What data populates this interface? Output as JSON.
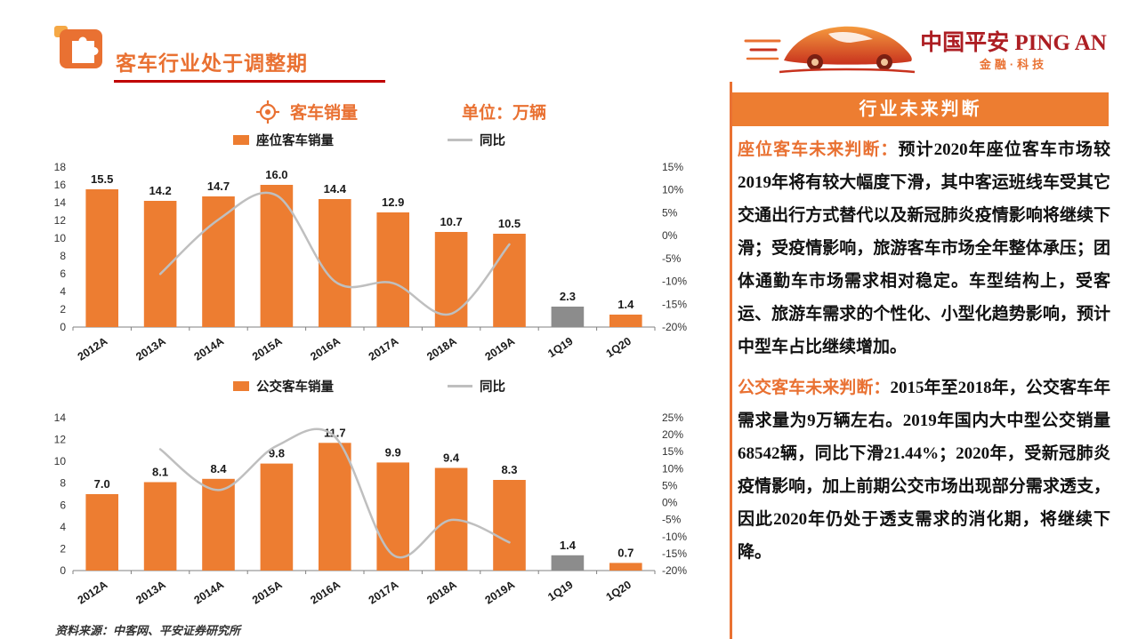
{
  "header": {
    "title": "客车行业处于调整期",
    "logo": {
      "brand": "中国平安 PING AN",
      "tagline": "金融·科技"
    }
  },
  "chart_section": {
    "title": "客车销量",
    "unit": "单位：万辆"
  },
  "chart_data": [
    {
      "type": "bar",
      "subtype": "bar+line-dual-axis",
      "categories": [
        "2012A",
        "2013A",
        "2014A",
        "2015A",
        "2016A",
        "2017A",
        "2018A",
        "2019A",
        "1Q19",
        "1Q20"
      ],
      "series": [
        {
          "name": "座位客车销量",
          "type": "bar",
          "axis": "left",
          "values": [
            15.5,
            14.2,
            14.7,
            16.0,
            14.4,
            12.9,
            10.7,
            10.5,
            2.3,
            1.4
          ],
          "labels": [
            "15.5",
            "14.2",
            "14.7",
            "16.0",
            "14.4",
            "12.9",
            "10.7",
            "10.5",
            "2.3",
            "1.4"
          ]
        },
        {
          "name": "同比",
          "type": "line",
          "axis": "right",
          "points": [
            {
              "category": "2013A",
              "value": -8.4
            },
            {
              "category": "2014A",
              "value": 3.5
            },
            {
              "category": "2015A",
              "value": 8.8
            },
            {
              "category": "2016A",
              "value": -10.0
            },
            {
              "category": "2017A",
              "value": -10.4
            },
            {
              "category": "2018A",
              "value": -17.1
            },
            {
              "category": "2019A",
              "value": -1.9
            }
          ]
        }
      ],
      "ylim_left": [
        0,
        18
      ],
      "ytick_left": 2,
      "ylim_right_pct": [
        -20,
        15
      ],
      "ytick_right_pct": 5,
      "grid": false,
      "legend_position": "top",
      "gray_bar_categories": [
        "1Q19"
      ]
    },
    {
      "type": "bar",
      "subtype": "bar+line-dual-axis",
      "categories": [
        "2012A",
        "2013A",
        "2014A",
        "2015A",
        "2016A",
        "2017A",
        "2018A",
        "2019A",
        "1Q19",
        "1Q20"
      ],
      "series": [
        {
          "name": "公交客车销量",
          "type": "bar",
          "axis": "left",
          "values": [
            7.0,
            8.1,
            8.4,
            9.8,
            11.7,
            9.9,
            9.4,
            8.3,
            1.4,
            0.7
          ],
          "labels": [
            "7.0",
            "8.1",
            "8.4",
            "9.8",
            "11.7",
            "9.9",
            "9.4",
            "8.3",
            "1.4",
            "0.7"
          ]
        },
        {
          "name": "同比",
          "type": "line",
          "axis": "right",
          "points": [
            {
              "category": "2013A",
              "value": 15.7
            },
            {
              "category": "2014A",
              "value": 3.7
            },
            {
              "category": "2015A",
              "value": 16.7
            },
            {
              "category": "2016A",
              "value": 19.4
            },
            {
              "category": "2017A",
              "value": -15.4
            },
            {
              "category": "2018A",
              "value": -5.1
            },
            {
              "category": "2019A",
              "value": -11.7
            }
          ]
        }
      ],
      "ylim_left": [
        0,
        14
      ],
      "ytick_left": 2,
      "ylim_right_pct": [
        -20,
        25
      ],
      "ytick_right_pct": 5,
      "grid": false,
      "legend_position": "top",
      "gray_bar_categories": [
        "1Q19"
      ]
    }
  ],
  "panel": {
    "title": "行业未来判断",
    "paragraphs": [
      {
        "heading": "座位客车未来判断：",
        "body": "预计2020年座位客车市场较2019年将有较大幅度下滑，其中客运班线车受其它交通出行方式替代以及新冠肺炎疫情影响将继续下滑；受疫情影响，旅游客车市场全年整体承压；团体通勤车市场需求相对稳定。车型结构上，受客运、旅游车需求的个性化、小型化趋势影响，预计中型车占比继续增加。"
      },
      {
        "heading": "公交客车未来判断：",
        "body": "2015年至2018年，公交客车年需求量为9万辆左右。2019年国内大中型公交销量68542辆，同比下滑21.44%；2020年，受新冠肺炎疫情影响，加上前期公交市场出现部分需求透支，因此2020年仍处于透支需求的消化期，将继续下降。"
      }
    ]
  },
  "footer": {
    "source": "资料来源：中客网、平安证券研究所"
  },
  "icons": {
    "header_icon": "puzzle-icon",
    "chart_title_icon": "crosshair-target-icon",
    "logo_icon": "sports-car-icon"
  },
  "colors": {
    "bar_orange": "#ED7D31",
    "gray_bar": "#8C8C8C",
    "line_gray": "#BFBFBF",
    "title_orange": "#E97132",
    "underline_red": "#C00000",
    "brand_red": "#AD1E23",
    "panel_header_bg": "#ED7D31"
  }
}
